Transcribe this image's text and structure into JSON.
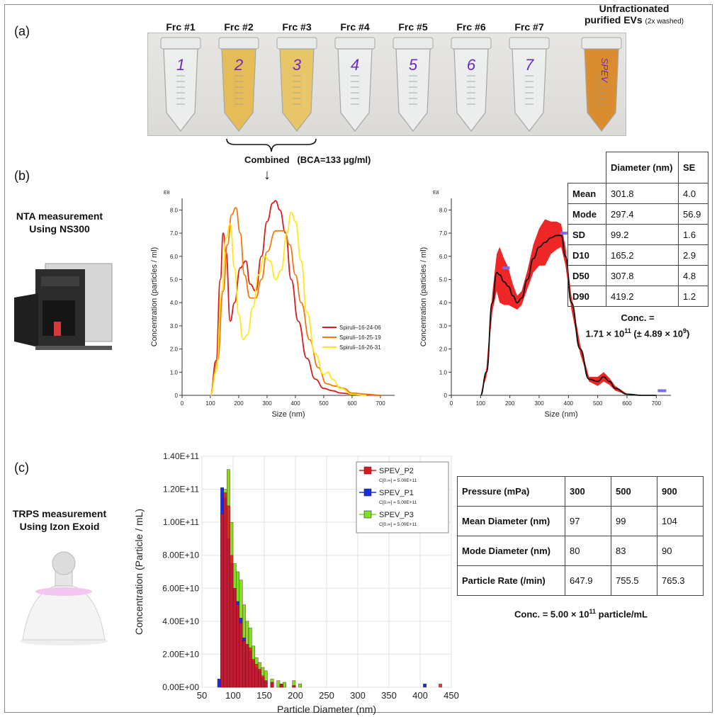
{
  "panels": {
    "a": "(a)",
    "b": "(b)",
    "c": "(c)"
  },
  "panel_a": {
    "fractions": [
      "Frc #1",
      "Frc #2",
      "Frc #3",
      "Frc #4",
      "Frc #5",
      "Frc #6",
      "Frc #7"
    ],
    "tube_numbers": [
      "1",
      "2",
      "3",
      "4",
      "5",
      "6",
      "7"
    ],
    "unfractionated_line1": "Unfractionated",
    "unfractionated_line2": "purified EVs",
    "unfractionated_note": "(2x washed)",
    "tube_spev": "SPEV",
    "combined": "Combined",
    "bca": "(BCA=133 µg/ml)",
    "arrow": "↓"
  },
  "panel_b": {
    "device_line1": "NTA measurement",
    "device_line2": "Using NS300",
    "scale_tag": "E8",
    "stats_table": {
      "header": [
        "",
        "Diameter (nm)",
        "SE"
      ],
      "rows": [
        [
          "Mean",
          "301.8",
          "4.0"
        ],
        [
          "Mode",
          "297.4",
          "56.9"
        ],
        [
          "SD",
          "99.2",
          "1.6"
        ],
        [
          "D10",
          "165.2",
          "2.9"
        ],
        [
          "D50",
          "307.8",
          "4.8"
        ],
        [
          "D90",
          "419.2",
          "1.2"
        ]
      ]
    },
    "conc_line1": "Conc. =",
    "conc_mantissa": "1.71 × 10",
    "conc_exp": "11",
    "conc_err_open": " (± 4.89 × 10",
    "conc_err_exp": "9",
    "conc_err_close": ")"
  },
  "panel_c": {
    "device_line1": "TRPS measurement",
    "device_line2": "Using Izon Exoid",
    "table": {
      "rows": [
        [
          "Pressure (mPa)",
          "300",
          "500",
          "900"
        ],
        [
          "Mean Diameter (nm)",
          "97",
          "99",
          "104"
        ],
        [
          "Mode Diameter (nm)",
          "80",
          "83",
          "90"
        ],
        [
          "Particle Rate (/min)",
          "647.9",
          "755.5",
          "765.3"
        ]
      ]
    },
    "conc_pre": "Conc. = 5.00 × 10",
    "conc_exp": "11",
    "conc_post": " particle/mL"
  },
  "chart_data": [
    {
      "type": "line",
      "xlabel": "Size (nm)",
      "ylabel": "Concentration (particles / ml)",
      "xlim": [
        0,
        750
      ],
      "ylim": [
        0,
        8.5
      ],
      "xticks": [
        0,
        100,
        200,
        300,
        400,
        500,
        600,
        700
      ],
      "yticks": [
        0,
        1.0,
        2.0,
        3.0,
        4.0,
        5.0,
        6.0,
        7.0,
        8.0
      ],
      "legend_position": "right",
      "colors": [
        "#d42020",
        "#ee7a10",
        "#ffe81a"
      ],
      "series": [
        {
          "name": "Spiruli–16-24-06",
          "x": [
            100,
            120,
            135,
            145,
            155,
            170,
            185,
            205,
            225,
            240,
            260,
            280,
            300,
            320,
            330,
            345,
            365,
            385,
            410,
            440,
            470,
            500,
            530,
            560,
            600,
            650,
            700
          ],
          "y": [
            0,
            1.5,
            5.0,
            7.0,
            6.2,
            3.2,
            4.0,
            5.5,
            5.8,
            4.8,
            4.5,
            6.0,
            7.5,
            8.3,
            8.4,
            8.0,
            7.0,
            5.0,
            3.2,
            1.6,
            0.7,
            0.3,
            0.2,
            0.1,
            0.05,
            0.02,
            0
          ]
        },
        {
          "name": "Spiruli–16-25-19",
          "x": [
            100,
            125,
            145,
            160,
            175,
            190,
            205,
            220,
            240,
            260,
            280,
            300,
            330,
            360,
            380,
            400,
            420,
            450,
            480,
            510,
            540,
            570,
            600,
            650,
            700
          ],
          "y": [
            0,
            1.5,
            4.5,
            6.5,
            7.8,
            8.1,
            7.0,
            5.2,
            4.2,
            4.2,
            5.0,
            6.2,
            7.1,
            7.1,
            6.5,
            5.2,
            4.0,
            2.4,
            1.2,
            0.5,
            0.4,
            0.3,
            0.1,
            0.05,
            0
          ]
        },
        {
          "name": "Spiruli–16-26-31",
          "x": [
            100,
            120,
            140,
            155,
            170,
            185,
            200,
            215,
            230,
            250,
            270,
            290,
            310,
            330,
            350,
            370,
            385,
            400,
            420,
            440,
            470,
            500,
            515,
            530,
            560,
            600,
            650
          ],
          "y": [
            0,
            1.0,
            4.5,
            6.8,
            7.4,
            5.5,
            3.5,
            2.4,
            2.6,
            3.8,
            5.2,
            6.0,
            5.8,
            5.0,
            5.4,
            7.0,
            7.9,
            7.5,
            5.8,
            3.6,
            1.8,
            0.9,
            1.0,
            0.7,
            0.3,
            0.05,
            0
          ]
        }
      ]
    },
    {
      "type": "line",
      "xlabel": "Size (nm)",
      "ylabel": "Concentration (particles / ml)",
      "xlim": [
        0,
        750
      ],
      "ylim": [
        0,
        8.5
      ],
      "xticks": [
        0,
        100,
        200,
        300,
        400,
        500,
        600,
        700
      ],
      "yticks": [
        0,
        1.0,
        2.0,
        3.0,
        4.0,
        5.0,
        6.0,
        7.0,
        8.0
      ],
      "colors": [
        "#111111",
        "#ee1a1a"
      ],
      "series": [
        {
          "name": "",
          "x": [
            100,
            120,
            140,
            155,
            165,
            180,
            195,
            210,
            225,
            240,
            260,
            280,
            300,
            320,
            340,
            360,
            375,
            390,
            410,
            440,
            470,
            500,
            520,
            540,
            560,
            600,
            650,
            700
          ],
          "y": [
            0,
            1.0,
            4.0,
            5.3,
            5.2,
            4.9,
            4.7,
            4.3,
            4.0,
            4.2,
            5.0,
            5.9,
            6.4,
            6.6,
            6.8,
            6.9,
            6.9,
            6.0,
            4.0,
            2.0,
            0.7,
            0.6,
            0.8,
            0.6,
            0.3,
            0.05,
            0,
            0
          ],
          "spread": [
            0,
            0.2,
            0.4,
            0.8,
            1.2,
            1.0,
            0.8,
            0.5,
            0.3,
            0.3,
            0.4,
            0.6,
            0.8,
            1.0,
            0.7,
            0.6,
            0.5,
            0.4,
            0.3,
            0.2,
            0.1,
            0.2,
            0.2,
            0.15,
            0.1,
            0.02,
            0,
            0
          ]
        }
      ]
    },
    {
      "type": "bar",
      "xlabel": "Particle Diameter (nm)",
      "ylabel": "Concentration (Particle / mL)",
      "xlim": [
        50,
        450
      ],
      "ylim": [
        0,
        140000000000.0
      ],
      "xticks": [
        50,
        100,
        150,
        200,
        250,
        300,
        350,
        400,
        450
      ],
      "yticks": [
        "0.00E+00",
        "2.00E+10",
        "4.00E+10",
        "6.00E+10",
        "8.00E+10",
        "1.00E+11",
        "1.20E+11",
        "1.40E+11"
      ],
      "bin_width": 5,
      "legend_position": "top-right",
      "series": [
        {
          "name": "SPEV_P2",
          "note": "C[0.∞] = 5.00E+11",
          "color": "#e01818",
          "bins": [
            75,
            80,
            85,
            90,
            95,
            100,
            105,
            110,
            115,
            120,
            125,
            130,
            135,
            140,
            145,
            150,
            160,
            175,
            195,
            430
          ],
          "values": [
            0,
            105000000000.0,
            118000000000.0,
            110000000000.0,
            80000000000.0,
            60000000000.0,
            50000000000.0,
            39000000000.0,
            28000000000.0,
            26000000000.0,
            24000000000.0,
            17000000000.0,
            14000000000.0,
            11000000000.0,
            7000000000.0,
            4000000000.0,
            3000000000.0,
            2000000000.0,
            1000000000.0,
            2000000000.0
          ]
        },
        {
          "name": "SPEV_P1",
          "note": "C[0.∞] = 5.00E+11",
          "color": "#1a2ee0",
          "bins": [
            75,
            80,
            85,
            90,
            95,
            100,
            105,
            110,
            115,
            120,
            125,
            130,
            135,
            140,
            145,
            150,
            160,
            175,
            195,
            405
          ],
          "values": [
            5000000000.0,
            121000000000.0,
            115000000000.0,
            90000000000.0,
            75000000000.0,
            60000000000.0,
            52000000000.0,
            42000000000.0,
            30000000000.0,
            26000000000.0,
            22000000000.0,
            16000000000.0,
            12000000000.0,
            10000000000.0,
            6000000000.0,
            4000000000.0,
            3000000000.0,
            2000000000.0,
            1000000000.0,
            2000000000.0
          ]
        },
        {
          "name": "SPEV_P3",
          "note": "C[0.∞] = 5.00E+11",
          "color": "#7ce024",
          "bins": [
            80,
            85,
            90,
            95,
            100,
            105,
            110,
            115,
            120,
            125,
            130,
            135,
            140,
            145,
            150,
            160,
            170,
            180,
            195,
            205
          ],
          "values": [
            90000000000.0,
            120000000000.0,
            132000000000.0,
            100000000000.0,
            75000000000.0,
            70000000000.0,
            65000000000.0,
            50000000000.0,
            40000000000.0,
            36000000000.0,
            25000000000.0,
            18000000000.0,
            15000000000.0,
            12000000000.0,
            10000000000.0,
            5000000000.0,
            4000000000.0,
            3000000000.0,
            4000000000.0,
            2000000000.0
          ]
        }
      ]
    }
  ]
}
